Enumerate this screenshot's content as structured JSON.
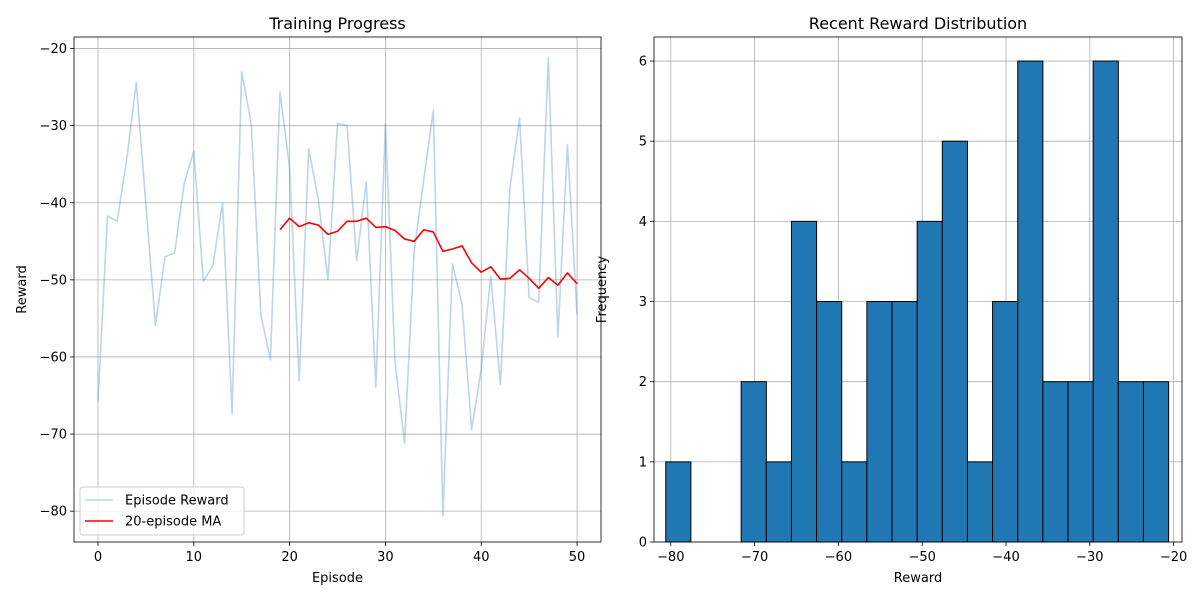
{
  "chart_data": [
    {
      "type": "line",
      "title": "Training Progress",
      "xlabel": "Episode",
      "ylabel": "Reward",
      "xlim": [
        -2.5,
        52.5
      ],
      "ylim": [
        -84,
        -18.5
      ],
      "xticks": [
        0,
        10,
        20,
        30,
        40,
        50
      ],
      "yticks": [
        -80,
        -70,
        -60,
        -50,
        -40,
        -30,
        -20
      ],
      "xtick_labels": [
        "0",
        "10",
        "20",
        "30",
        "40",
        "50"
      ],
      "ytick_labels": [
        "−80",
        "−70",
        "−60",
        "−50",
        "−40",
        "−30",
        "−20"
      ],
      "grid": true,
      "legend": "lower-left",
      "series": [
        {
          "name": "Episode Reward",
          "color": "#1f77b4",
          "alpha": 0.3,
          "x": [
            0,
            1,
            2,
            3,
            4,
            5,
            6,
            7,
            8,
            9,
            10,
            11,
            12,
            13,
            14,
            15,
            16,
            17,
            18,
            19,
            20,
            21,
            22,
            23,
            24,
            25,
            26,
            27,
            28,
            29,
            30,
            31,
            32,
            33,
            34,
            35,
            36,
            37,
            38,
            39,
            40,
            41,
            42,
            43,
            44,
            45,
            46,
            47,
            48,
            49,
            50
          ],
          "y": [
            -65.8,
            -41.7,
            -42.4,
            -34.4,
            -24.4,
            -40.2,
            -55.9,
            -47.0,
            -46.5,
            -37.5,
            -33.3,
            -50.2,
            -48.1,
            -40.0,
            -67.3,
            -23.0,
            -29.8,
            -54.5,
            -60.4,
            -25.6,
            -35.5,
            -63.1,
            -33.0,
            -39.6,
            -50.0,
            -29.7,
            -30.0,
            -47.5,
            -37.3,
            -63.9,
            -29.8,
            -60.6,
            -71.2,
            -46.3,
            -37.0,
            -28.0,
            -80.6,
            -47.9,
            -53.2,
            -69.4,
            -61.6,
            -49.5,
            -63.6,
            -38.0,
            -29.0,
            -52.3,
            -52.9,
            -21.2,
            -57.4,
            -32.5,
            -54.5
          ]
        },
        {
          "name": "20-episode MA",
          "color": "#ff0000",
          "x": [
            19,
            20,
            21,
            22,
            23,
            24,
            25,
            26,
            27,
            28,
            29,
            30,
            31,
            32,
            33,
            34,
            35,
            36,
            37,
            38,
            39,
            40,
            41,
            42,
            43,
            44,
            45,
            46,
            47,
            48,
            49,
            50
          ],
          "y": [
            -43.5,
            -42.0,
            -43.1,
            -42.6,
            -42.9,
            -44.1,
            -43.7,
            -42.4,
            -42.4,
            -42.0,
            -43.2,
            -43.1,
            -43.6,
            -44.7,
            -45.0,
            -43.5,
            -43.8,
            -46.3,
            -46.0,
            -45.6,
            -47.8,
            -49.0,
            -48.3,
            -49.9,
            -49.8,
            -48.7,
            -49.8,
            -51.1,
            -49.7,
            -50.7,
            -49.1,
            -50.5
          ]
        }
      ]
    },
    {
      "type": "bar",
      "title": "Recent Reward Distribution",
      "xlabel": "Reward",
      "ylabel": "Frequency",
      "xlim": [
        -82.0,
        -19.0
      ],
      "ylim": [
        0,
        6.3
      ],
      "xticks": [
        -80,
        -70,
        -60,
        -50,
        -40,
        -30,
        -20
      ],
      "yticks": [
        0,
        1,
        2,
        3,
        4,
        5,
        6
      ],
      "xtick_labels": [
        "−80",
        "−70",
        "−60",
        "−50",
        "−40",
        "−30",
        "−20"
      ],
      "ytick_labels": [
        "0",
        "1",
        "2",
        "3",
        "4",
        "5",
        "6"
      ],
      "grid": true,
      "bar_color": "#1f77b4",
      "edge_color": "#000000",
      "bin_edges": [
        -80.6,
        -77.6,
        -74.6,
        -71.6,
        -68.6,
        -65.6,
        -62.6,
        -59.6,
        -56.6,
        -53.6,
        -50.6,
        -47.6,
        -44.6,
        -41.6,
        -38.6,
        -35.6,
        -32.6,
        -29.6,
        -26.6,
        -23.6,
        -20.6
      ],
      "values": [
        1,
        0,
        0,
        2,
        1,
        4,
        3,
        1,
        3,
        3,
        4,
        5,
        1,
        3,
        6,
        2,
        2,
        6,
        2,
        2
      ]
    }
  ]
}
